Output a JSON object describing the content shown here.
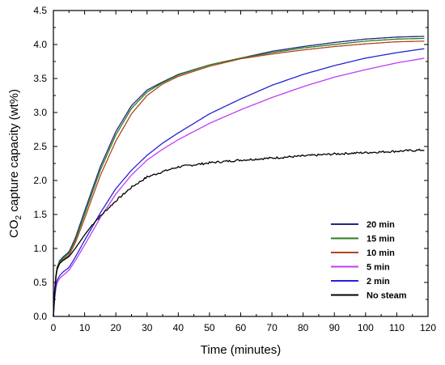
{
  "chart_data": {
    "type": "line",
    "xlabel": "Time (minutes)",
    "ylabel_main": "CO",
    "ylabel_sub": "2",
    "ylabel_rest": " capture capacity (wt%)",
    "xlim": [
      0,
      120
    ],
    "ylim": [
      0.0,
      4.5
    ],
    "x_ticks": [
      0,
      10,
      20,
      30,
      40,
      50,
      60,
      70,
      80,
      90,
      100,
      110,
      120
    ],
    "x_tick_labels": [
      "0",
      "10",
      "20",
      "30",
      "40",
      "50",
      "60",
      "70",
      "80",
      "90",
      "100",
      "110",
      "120"
    ],
    "y_ticks": [
      0.0,
      0.5,
      1.0,
      1.5,
      2.0,
      2.5,
      3.0,
      3.5,
      4.0,
      4.5
    ],
    "y_tick_labels": [
      "0.0",
      "0.5",
      "1.0",
      "1.5",
      "2.0",
      "2.5",
      "3.0",
      "3.5",
      "4.0",
      "4.5"
    ],
    "grid": false,
    "legend_position": "bottom-right",
    "series": [
      {
        "name": "20 min",
        "color": "#1f2a7a",
        "x": [
          0,
          0.5,
          1,
          2,
          3,
          5,
          7,
          10,
          15,
          20,
          25,
          30,
          35,
          40,
          50,
          60,
          70,
          80,
          90,
          100,
          110,
          119
        ],
        "y": [
          0,
          0.45,
          0.7,
          0.82,
          0.87,
          0.95,
          1.15,
          1.55,
          2.2,
          2.72,
          3.1,
          3.33,
          3.45,
          3.56,
          3.7,
          3.8,
          3.9,
          3.97,
          4.03,
          4.08,
          4.11,
          4.12
        ]
      },
      {
        "name": "15 min",
        "color": "#2e7d22",
        "x": [
          0,
          0.5,
          1,
          2,
          3,
          5,
          7,
          10,
          15,
          20,
          25,
          30,
          35,
          40,
          50,
          60,
          70,
          80,
          90,
          100,
          110,
          119
        ],
        "y": [
          0,
          0.44,
          0.68,
          0.8,
          0.85,
          0.93,
          1.12,
          1.5,
          2.15,
          2.67,
          3.06,
          3.3,
          3.44,
          3.55,
          3.7,
          3.8,
          3.88,
          3.95,
          4.0,
          4.05,
          4.08,
          4.09
        ]
      },
      {
        "name": "10 min",
        "color": "#b0451e",
        "x": [
          0,
          0.5,
          1,
          2,
          3,
          5,
          7,
          10,
          15,
          20,
          25,
          30,
          35,
          40,
          50,
          60,
          70,
          80,
          90,
          100,
          110,
          119
        ],
        "y": [
          0,
          0.43,
          0.66,
          0.78,
          0.83,
          0.9,
          1.08,
          1.44,
          2.07,
          2.58,
          2.98,
          3.25,
          3.42,
          3.53,
          3.68,
          3.79,
          3.86,
          3.92,
          3.97,
          4.01,
          4.04,
          4.05
        ]
      },
      {
        "name": "5 min",
        "color": "#c13cf0",
        "x": [
          0,
          0.5,
          1,
          2,
          3,
          5,
          7,
          10,
          15,
          20,
          25,
          30,
          35,
          40,
          50,
          60,
          70,
          80,
          90,
          100,
          110,
          119
        ],
        "y": [
          0,
          0.32,
          0.48,
          0.56,
          0.6,
          0.68,
          0.82,
          1.05,
          1.45,
          1.8,
          2.08,
          2.3,
          2.46,
          2.6,
          2.84,
          3.04,
          3.22,
          3.38,
          3.52,
          3.63,
          3.73,
          3.8
        ]
      },
      {
        "name": "2 min",
        "color": "#2323d6",
        "x": [
          0,
          0.5,
          1,
          2,
          3,
          5,
          7,
          10,
          15,
          20,
          25,
          30,
          35,
          40,
          50,
          60,
          70,
          80,
          90,
          100,
          110,
          119
        ],
        "y": [
          0,
          0.35,
          0.52,
          0.6,
          0.65,
          0.72,
          0.87,
          1.12,
          1.52,
          1.88,
          2.15,
          2.37,
          2.55,
          2.7,
          2.98,
          3.2,
          3.4,
          3.56,
          3.69,
          3.8,
          3.88,
          3.94
        ]
      },
      {
        "name": "No steam",
        "color": "#000000",
        "x": [
          0,
          0.5,
          1,
          2,
          3,
          5,
          7,
          10,
          13,
          16,
          20,
          25,
          30,
          35,
          40,
          50,
          60,
          70,
          80,
          90,
          100,
          110,
          119
        ],
        "y": [
          0,
          0.45,
          0.68,
          0.78,
          0.82,
          0.88,
          1.0,
          1.2,
          1.38,
          1.52,
          1.7,
          1.9,
          2.05,
          2.13,
          2.2,
          2.26,
          2.3,
          2.33,
          2.36,
          2.39,
          2.41,
          2.43,
          2.45
        ],
        "noisy": true
      }
    ]
  }
}
